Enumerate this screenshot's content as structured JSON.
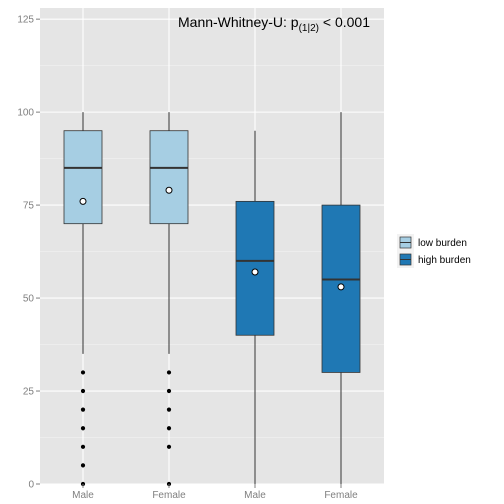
{
  "chart_data": {
    "type": "boxplot",
    "annotation": {
      "main": "Mann-Whitney-U:  p",
      "subscript": "(1|2)",
      "suffix": " < 0.001"
    },
    "categories": [
      "Male",
      "Female",
      "Male",
      "Female"
    ],
    "y_ticks": [
      0,
      25,
      50,
      75,
      100,
      125
    ],
    "ylim": [
      0,
      128
    ],
    "grid": true,
    "legend": {
      "position": "right",
      "entries": [
        {
          "label": "low burden",
          "color": "#a6cee3"
        },
        {
          "label": "high burden",
          "color": "#1f78b4"
        }
      ]
    },
    "boxes": [
      {
        "category": "Male",
        "group": "low burden",
        "min": 35,
        "q1": 70,
        "median": 85,
        "q3": 95,
        "max": 100,
        "mean": 76,
        "outliers": [
          0,
          5,
          10,
          15,
          20,
          25,
          30
        ]
      },
      {
        "category": "Female",
        "group": "low burden",
        "min": 35,
        "q1": 70,
        "median": 85,
        "q3": 95,
        "max": 100,
        "mean": 79,
        "outliers": [
          0,
          10,
          15,
          20,
          25,
          30
        ]
      },
      {
        "category": "Male",
        "group": "high burden",
        "min": 0,
        "q1": 40,
        "median": 60,
        "q3": 76,
        "max": 95,
        "mean": 57,
        "outliers": []
      },
      {
        "category": "Female",
        "group": "high burden",
        "min": 0,
        "q1": 30,
        "median": 55,
        "q3": 75,
        "max": 100,
        "mean": 53,
        "outliers": []
      }
    ]
  }
}
